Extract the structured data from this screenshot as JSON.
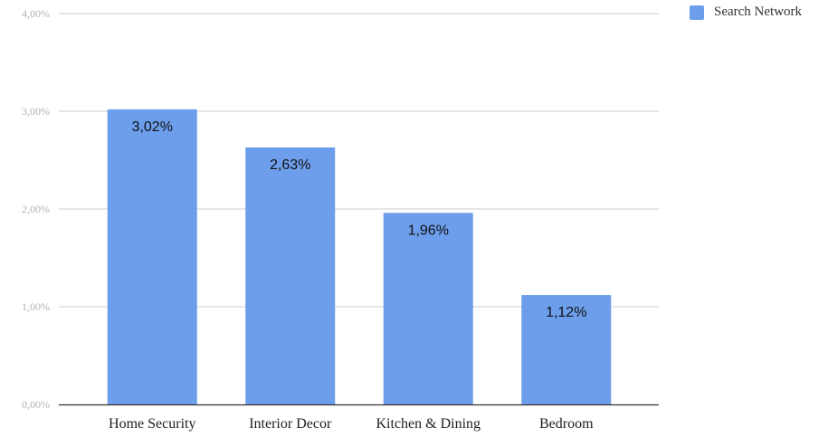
{
  "chart_data": {
    "type": "bar",
    "categories": [
      "Home Security",
      "Interior Decor",
      "Kitchen & Dining",
      "Bedroom"
    ],
    "series": [
      {
        "name": "Search Network",
        "color": "#6d9eeb",
        "values": [
          3.02,
          2.63,
          1.96,
          1.12
        ],
        "data_labels": [
          "3,02%",
          "2,63%",
          "1,96%",
          "1,12%"
        ]
      }
    ],
    "ylim": [
      0,
      4
    ],
    "yticks": [
      {
        "value": 0,
        "label": "0,00%"
      },
      {
        "value": 1,
        "label": "1,00%"
      },
      {
        "value": 2,
        "label": "2,00%"
      },
      {
        "value": 3,
        "label": "3,00%"
      },
      {
        "value": 4,
        "label": "4,00%"
      }
    ],
    "grid": true,
    "legend_position": "top-right"
  }
}
